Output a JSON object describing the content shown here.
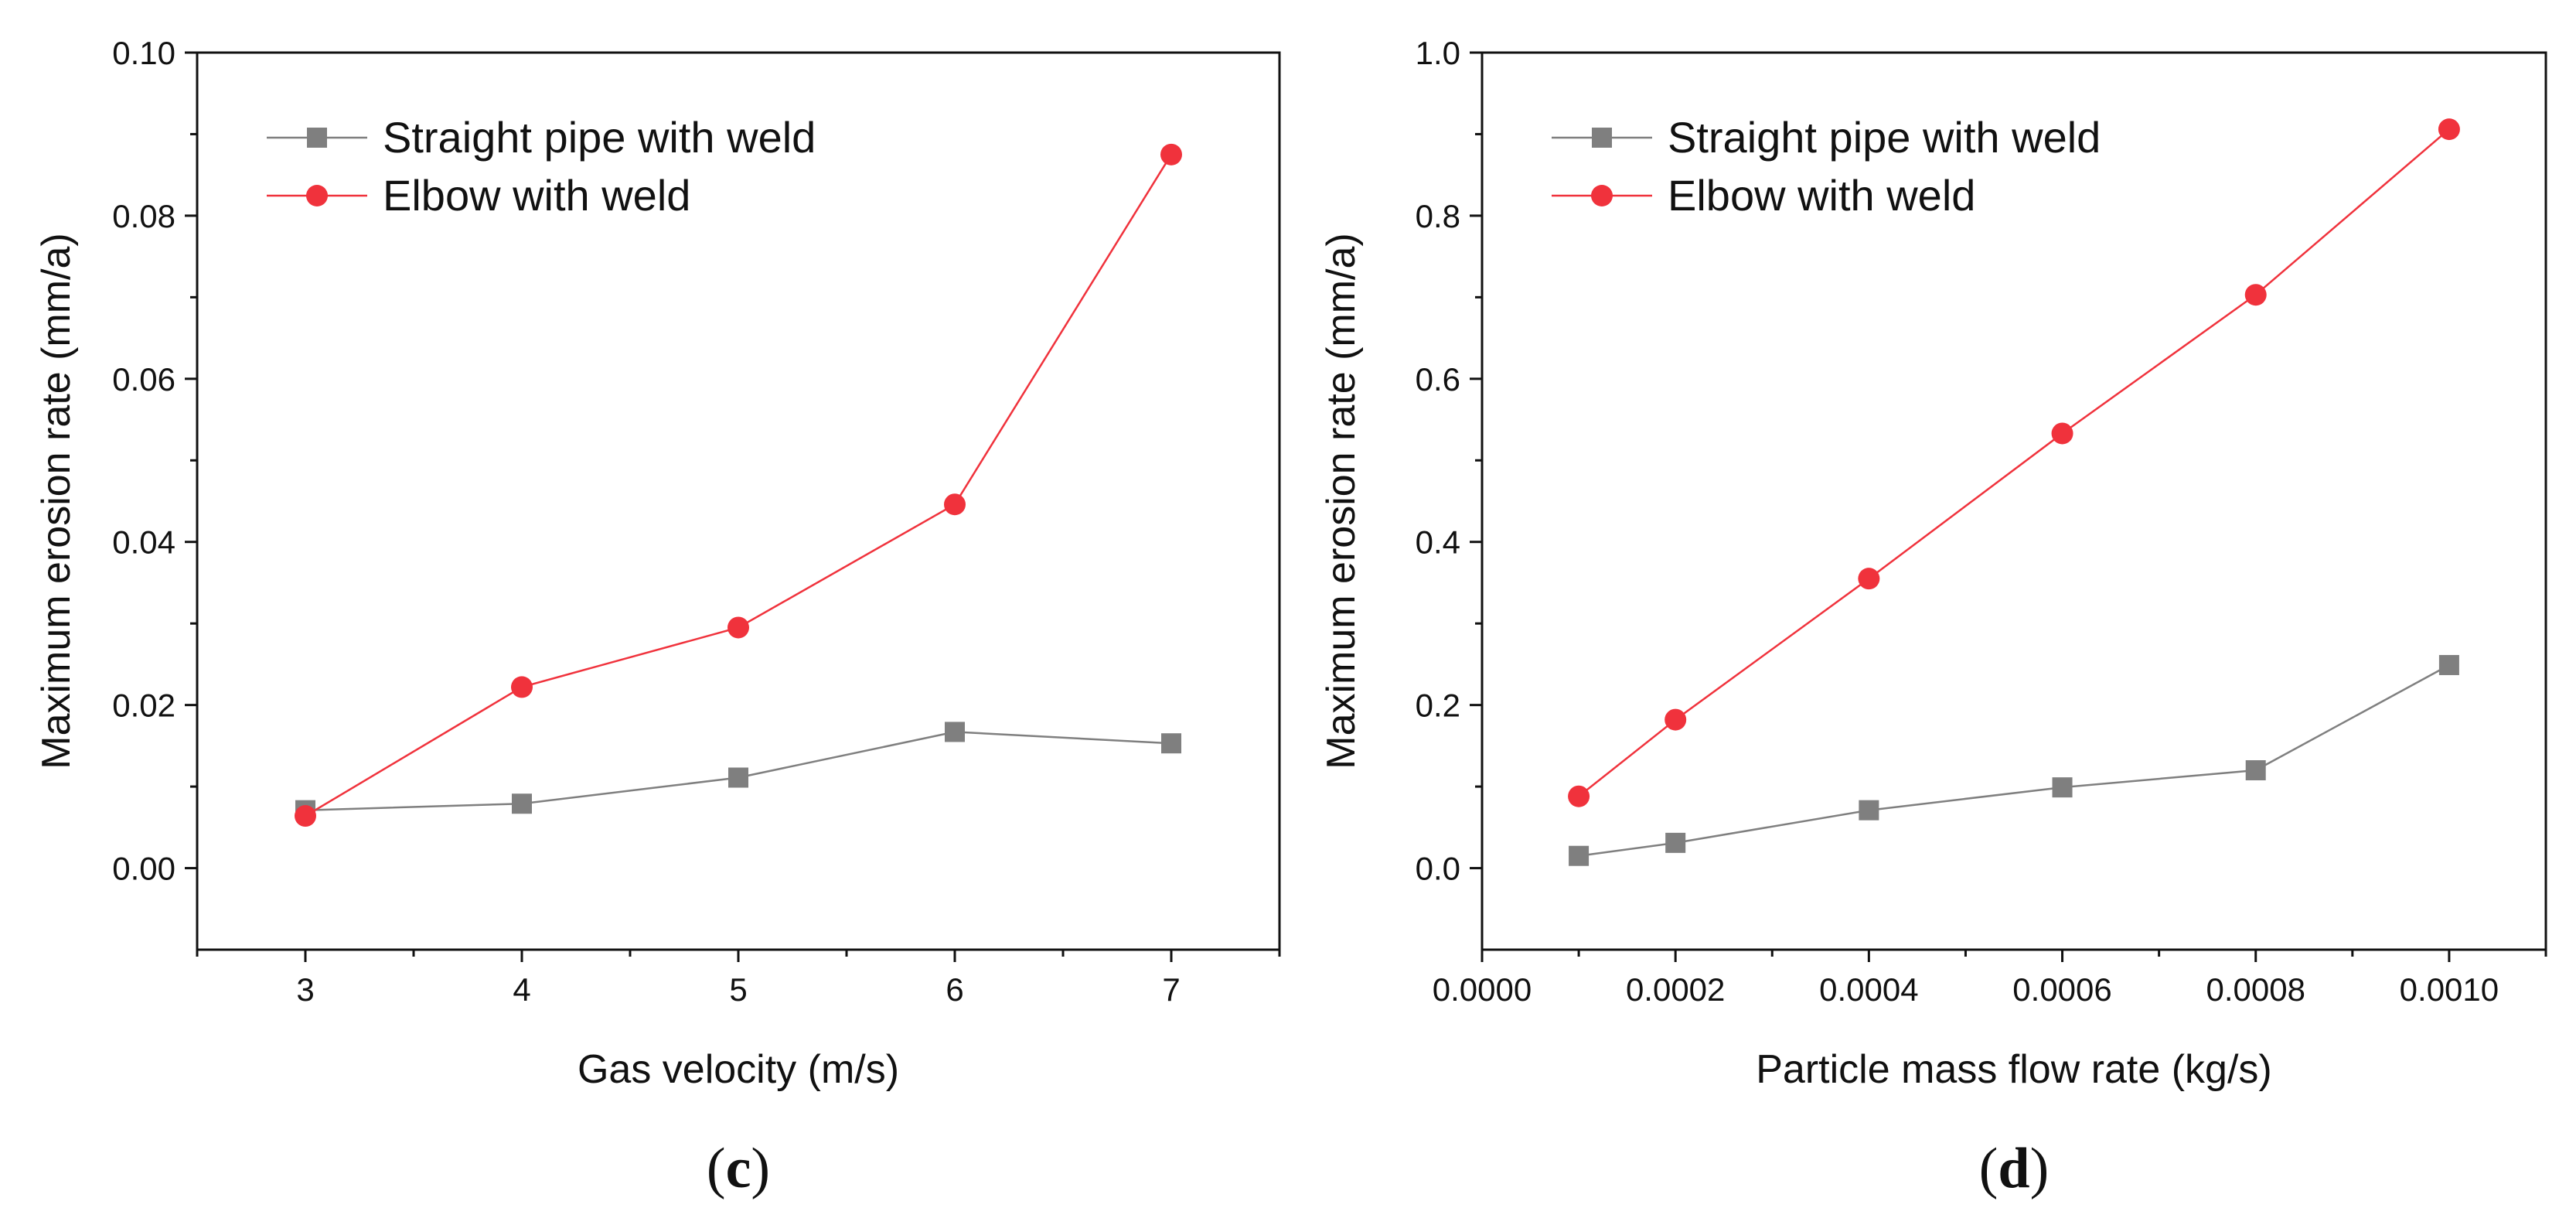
{
  "colors": {
    "straight": "#7f7f7f",
    "elbow": "#f0323c",
    "axis": "#111111"
  },
  "chart_data": [
    {
      "type": "line",
      "panel_label": "c",
      "xlabel": "Gas velocity (m/s)",
      "ylabel": "Maximum erosion rate (mm/a)",
      "xlim": [
        2.5,
        7.5
      ],
      "ylim": [
        -0.01,
        0.1
      ],
      "xticks": [
        3,
        4,
        5,
        6,
        7
      ],
      "xtick_labels": [
        "3",
        "4",
        "5",
        "6",
        "7"
      ],
      "yticks": [
        0.0,
        0.02,
        0.04,
        0.06,
        0.08,
        0.1
      ],
      "ytick_labels": [
        "0.00",
        "0.02",
        "0.04",
        "0.06",
        "0.08",
        "0.10"
      ],
      "x": [
        3,
        4,
        5,
        6,
        7
      ],
      "legend_position": "top-left",
      "series": [
        {
          "name": "Straight pipe with weld",
          "marker": "square",
          "color_key": "straight",
          "values": [
            0.0071,
            0.0079,
            0.0111,
            0.0167,
            0.0153
          ]
        },
        {
          "name": "Elbow with weld",
          "marker": "circle",
          "color_key": "elbow",
          "values": [
            0.0064,
            0.0222,
            0.0295,
            0.0446,
            0.0875
          ]
        }
      ]
    },
    {
      "type": "line",
      "panel_label": "d",
      "xlabel": "Particle mass flow rate (kg/s)",
      "ylabel": "Maximum erosion rate (mm/a)",
      "xlim": [
        0.0,
        0.0011
      ],
      "ylim": [
        -0.1,
        1.0
      ],
      "xticks": [
        0.0,
        0.0002,
        0.0004,
        0.0006,
        0.0008,
        0.001
      ],
      "xtick_labels": [
        "0.0000",
        "0.0002",
        "0.0004",
        "0.0006",
        "0.0008",
        "0.0010"
      ],
      "yticks": [
        0.0,
        0.2,
        0.4,
        0.6,
        0.8,
        1.0
      ],
      "ytick_labels": [
        "0.0",
        "0.2",
        "0.4",
        "0.6",
        "0.8",
        "1.0"
      ],
      "x": [
        0.0001,
        0.0002,
        0.0004,
        0.0006,
        0.0008,
        0.001
      ],
      "legend_position": "top-left",
      "series": [
        {
          "name": "Straight pipe with weld",
          "marker": "square",
          "color_key": "straight",
          "values": [
            0.015,
            0.031,
            0.071,
            0.099,
            0.12,
            0.249
          ]
        },
        {
          "name": "Elbow with weld",
          "marker": "circle",
          "color_key": "elbow",
          "values": [
            0.088,
            0.182,
            0.355,
            0.533,
            0.703,
            0.906
          ]
        }
      ]
    }
  ]
}
